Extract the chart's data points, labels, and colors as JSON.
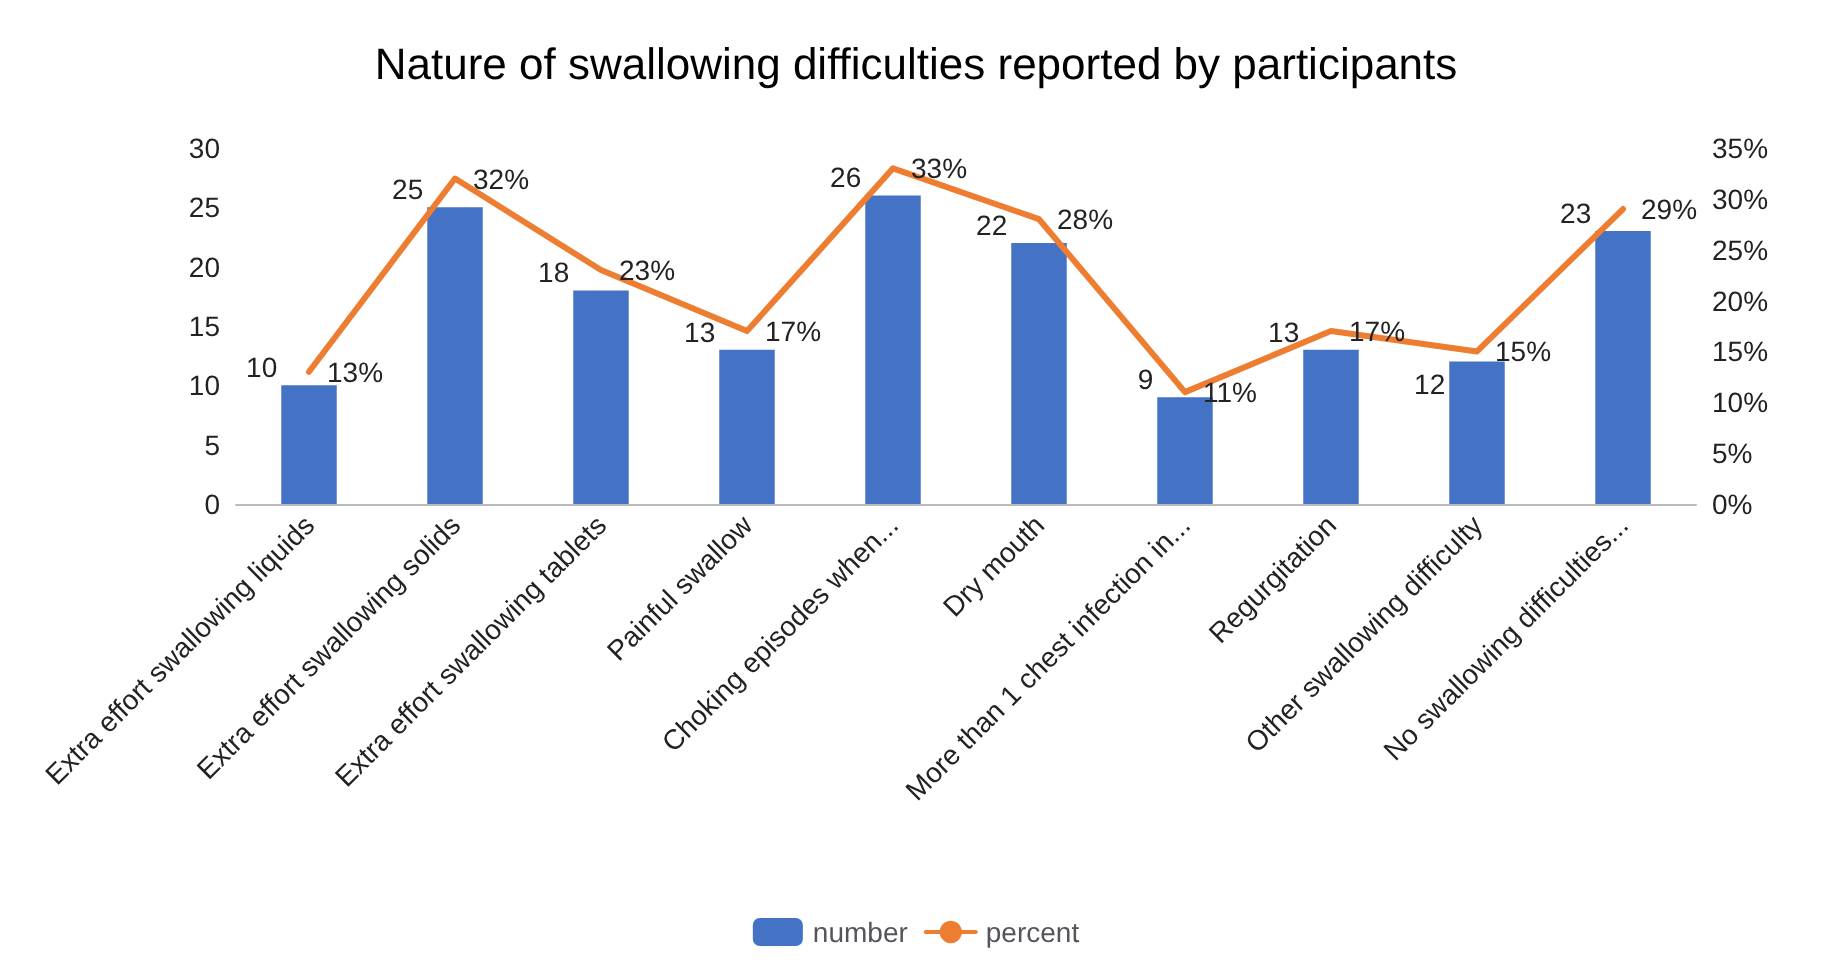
{
  "chart_data": {
    "type": "bar",
    "title": "Nature of swallowing difficulties reported by participants",
    "categories": [
      "Extra effort swallowing liquids",
      "Extra effort swallowing solids",
      "Extra effort swallowing tablets",
      "Painful swallow",
      "Choking episodes when...",
      "Dry mouth",
      "More than 1 chest infection in...",
      "Regurgitation",
      "Other swallowing difficulty",
      "No swallowing difficulties..."
    ],
    "series": [
      {
        "name": "number",
        "color": "#4472c4",
        "values": [
          10,
          25,
          18,
          13,
          26,
          22,
          9,
          13,
          12,
          23
        ],
        "value_labels": [
          "10",
          "25",
          "18",
          "13",
          "26",
          "22",
          "9",
          "13",
          "12",
          "23"
        ]
      },
      {
        "name": "percent",
        "type": "line",
        "axis": "y2",
        "color": "#ed7d31",
        "marker": "none",
        "values": [
          13,
          32,
          23,
          17,
          33,
          28,
          11,
          17,
          15,
          29
        ],
        "value_labels": [
          "13%",
          "32%",
          "23%",
          "17%",
          "33%",
          "28%",
          "11%",
          "17%",
          "15%",
          "29%"
        ]
      }
    ],
    "ylim": [
      0,
      30
    ],
    "yticks": [
      0,
      5,
      10,
      15,
      20,
      25,
      30
    ],
    "y2lim": [
      0,
      35
    ],
    "y2ticks": [
      {
        "value": 0,
        "label": "0%"
      },
      {
        "value": 5,
        "label": "5%"
      },
      {
        "value": 10,
        "label": "10%"
      },
      {
        "value": 15,
        "label": "15%"
      },
      {
        "value": 20,
        "label": "20%"
      },
      {
        "value": 25,
        "label": "25%"
      },
      {
        "value": 30,
        "label": "30%"
      },
      {
        "value": 35,
        "label": "35%"
      }
    ],
    "grid": false,
    "legend": "bottom"
  }
}
